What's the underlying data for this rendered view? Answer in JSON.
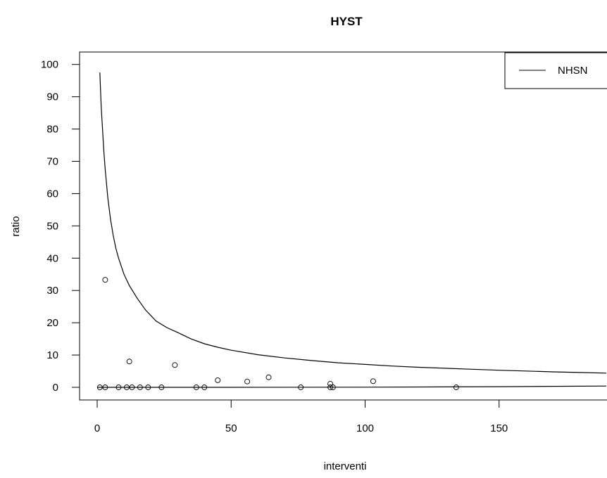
{
  "chart_data": {
    "type": "scatter",
    "title": "HYST",
    "xlabel": "interventi",
    "ylabel": "ratio",
    "xlim": [
      -5,
      190
    ],
    "ylim": [
      -5,
      104
    ],
    "x_ticks": [
      0,
      50,
      100,
      150
    ],
    "y_ticks": [
      0,
      10,
      20,
      30,
      40,
      50,
      60,
      70,
      80,
      90,
      100
    ],
    "x_tick_labels": [
      "0",
      "50",
      "100",
      "150"
    ],
    "y_tick_labels": [
      "0",
      "10",
      "20",
      "30",
      "40",
      "50",
      "60",
      "70",
      "80",
      "90",
      "100"
    ],
    "legend": {
      "position": "top-right",
      "entries": [
        {
          "label": "NHSN",
          "style": "line"
        }
      ]
    },
    "grid": false,
    "series": [
      {
        "type": "scatter",
        "marker": "open-circle",
        "points": [
          [
            1,
            0
          ],
          [
            3,
            33.3
          ],
          [
            3,
            0
          ],
          [
            8,
            0
          ],
          [
            11,
            0
          ],
          [
            12,
            8
          ],
          [
            13,
            0
          ],
          [
            16,
            0
          ],
          [
            19,
            0
          ],
          [
            24,
            0
          ],
          [
            29,
            6.9
          ],
          [
            37,
            0
          ],
          [
            40,
            0
          ],
          [
            45,
            2.2
          ],
          [
            56,
            1.8
          ],
          [
            64,
            3.1
          ],
          [
            76,
            0
          ],
          [
            87,
            1.1
          ],
          [
            87,
            0
          ],
          [
            88,
            0
          ],
          [
            103,
            1.9
          ],
          [
            134,
            0
          ]
        ]
      },
      {
        "name": "NHSN",
        "type": "line",
        "x": [
          1,
          1.5,
          2,
          2.5,
          3,
          4,
          5,
          6,
          7,
          8,
          10,
          12,
          15,
          18,
          22,
          26,
          30,
          35,
          40,
          45,
          50,
          60,
          70,
          80,
          90,
          100,
          110,
          120,
          130,
          140,
          150,
          160,
          170,
          180,
          190
        ],
        "y": [
          97.5,
          87,
          80,
          73,
          67.5,
          58.5,
          52,
          47,
          43,
          40,
          35,
          31.5,
          27.5,
          24,
          20.5,
          18.5,
          17,
          15,
          13.5,
          12.4,
          11.5,
          10.1,
          9.1,
          8.3,
          7.6,
          7.1,
          6.6,
          6.2,
          5.9,
          5.6,
          5.3,
          5.05,
          4.8,
          4.6,
          4.4
        ]
      },
      {
        "type": "line",
        "x": [
          0,
          50,
          100,
          150,
          190
        ],
        "y": [
          0,
          0,
          0.05,
          0.2,
          0.4
        ]
      }
    ]
  }
}
